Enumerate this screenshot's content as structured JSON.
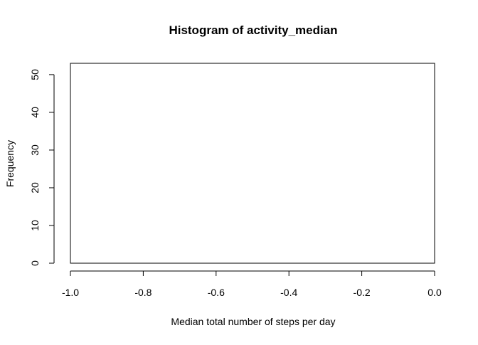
{
  "chart_data": {
    "type": "bar",
    "title": "Histogram of activity_median",
    "xlabel": "Median total number of steps per day",
    "ylabel": "Frequency",
    "x_ticks": [
      -1.0,
      -0.8,
      -0.6,
      -0.4,
      -0.2,
      0.0
    ],
    "x_tick_labels": [
      "-1.0",
      "-0.8",
      "-0.6",
      "-0.4",
      "-0.2",
      "0.0"
    ],
    "y_ticks": [
      0,
      10,
      20,
      30,
      40,
      50
    ],
    "y_tick_labels": [
      "0",
      "10",
      "20",
      "30",
      "40",
      "50"
    ],
    "xlim": [
      -1.0,
      0.0
    ],
    "ylim": [
      0,
      53
    ],
    "bins": [],
    "values": [],
    "grid": false,
    "colors": {
      "axis": "#000000",
      "background": "#ffffff"
    }
  }
}
